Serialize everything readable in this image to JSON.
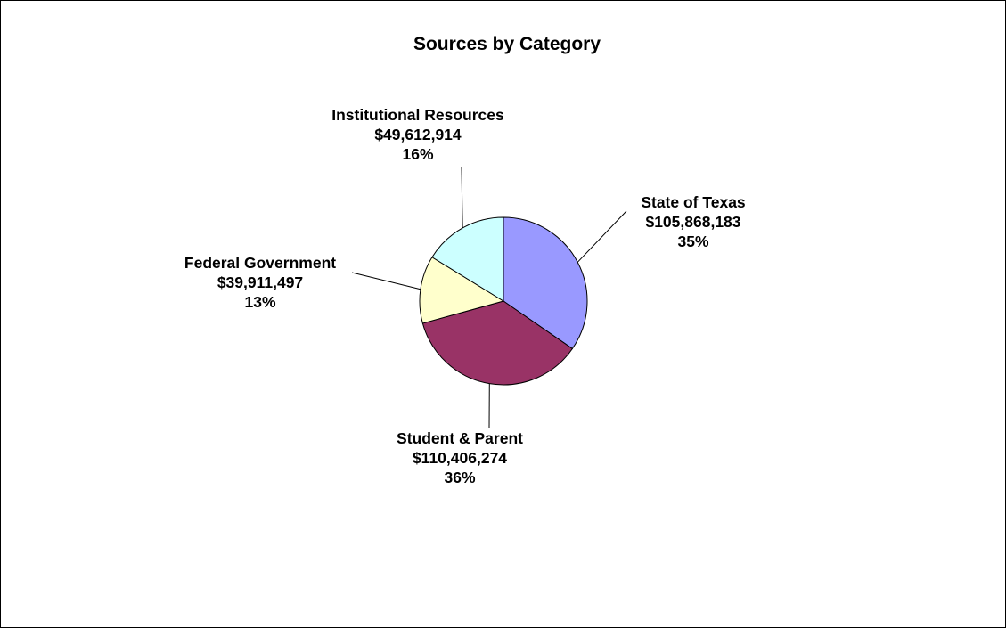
{
  "chart_data": {
    "type": "pie",
    "title": "Sources by Category",
    "start_angle_deg": 0,
    "direction": "clockwise",
    "slices": [
      {
        "label": "State of Texas",
        "value": 105868183,
        "value_text": "$105,868,183",
        "percent_text": "35%",
        "color": "#9999FF"
      },
      {
        "label": "Student & Parent",
        "value": 110406274,
        "value_text": "$110,406,274",
        "percent_text": "36%",
        "color": "#993366"
      },
      {
        "label": "Federal Government",
        "value": 39911497,
        "value_text": "$39,911,497",
        "percent_text": "13%",
        "color": "#FFFFCC"
      },
      {
        "label": "Institutional Resources",
        "value": 49612914,
        "value_text": "$49,612,914",
        "percent_text": "16%",
        "color": "#CCFFFF"
      }
    ]
  }
}
